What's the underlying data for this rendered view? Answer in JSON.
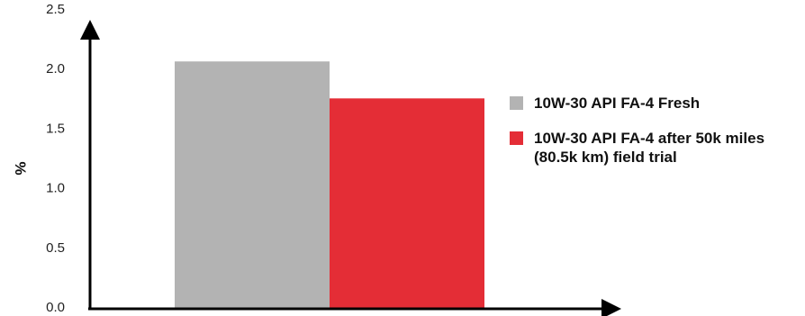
{
  "chart_data": {
    "type": "bar",
    "categories": [
      "10W-30 API FA-4 Fresh",
      "10W-30 API FA-4 after 50k miles (80.5k km) field trial"
    ],
    "values": [
      2.06,
      1.75
    ],
    "colors": [
      "#b3b3b3",
      "#e42d36"
    ],
    "ylabel": "%",
    "xlabel": "",
    "ylim": [
      0,
      2.5
    ],
    "yticks": [
      "0.0",
      "0.5",
      "1.0",
      "1.5",
      "2.0",
      "2.5"
    ],
    "grid": false,
    "legend_position": "right",
    "legend": [
      {
        "label": "10W-30 API FA-4 Fresh",
        "color": "#b3b3b3"
      },
      {
        "label": "10W-30 API FA-4 after 50k miles (80.5k km) field trial",
        "color": "#e42d36"
      }
    ]
  }
}
